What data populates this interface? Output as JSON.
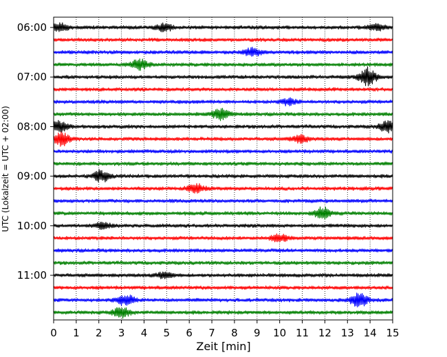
{
  "chart_data": {
    "type": "line",
    "subtype": "helicorder",
    "xlabel": "Zeit  [min]",
    "ylabel": "UTC (Lokalzeit = UTC + 02:00)",
    "xlim": [
      0,
      15
    ],
    "x_ticks": [
      "0",
      "1",
      "2",
      "3",
      "4",
      "5",
      "6",
      "7",
      "8",
      "9",
      "10",
      "11",
      "12",
      "13",
      "14",
      "15"
    ],
    "y_ticks": [
      "06:00",
      "07:00",
      "08:00",
      "09:00",
      "10:00",
      "11:00"
    ],
    "grid": "vertical dotted at each minute",
    "trace_interval_min": 15,
    "start_time": "06:00",
    "colors": [
      "#000000",
      "#ff0000",
      "#0000ff",
      "#008000"
    ],
    "traces": [
      {
        "start": "06:00",
        "color": "#000000",
        "events": [
          {
            "t": 0.3,
            "amp": 5
          },
          {
            "t": 4.9,
            "amp": 5
          },
          {
            "t": 14.3,
            "amp": 4
          }
        ]
      },
      {
        "start": "06:15",
        "color": "#ff0000",
        "events": []
      },
      {
        "start": "06:30",
        "color": "#0000ff",
        "events": [
          {
            "t": 8.8,
            "amp": 5
          }
        ]
      },
      {
        "start": "06:45",
        "color": "#008000",
        "events": [
          {
            "t": 3.8,
            "amp": 7
          }
        ]
      },
      {
        "start": "07:00",
        "color": "#000000",
        "events": [
          {
            "t": 13.9,
            "amp": 13
          }
        ]
      },
      {
        "start": "07:15",
        "color": "#ff0000",
        "events": []
      },
      {
        "start": "07:30",
        "color": "#0000ff",
        "events": [
          {
            "t": 10.4,
            "amp": 4
          }
        ]
      },
      {
        "start": "07:45",
        "color": "#008000",
        "events": [
          {
            "t": 7.4,
            "amp": 8
          }
        ]
      },
      {
        "start": "08:00",
        "color": "#000000",
        "events": [
          {
            "t": 0.25,
            "amp": 7
          },
          {
            "t": 14.8,
            "amp": 8
          }
        ]
      },
      {
        "start": "08:15",
        "color": "#ff0000",
        "events": [
          {
            "t": 0.35,
            "amp": 9
          },
          {
            "t": 10.9,
            "amp": 5
          }
        ]
      },
      {
        "start": "08:30",
        "color": "#0000ff",
        "events": []
      },
      {
        "start": "08:45",
        "color": "#008000",
        "events": []
      },
      {
        "start": "09:00",
        "color": "#000000",
        "events": [
          {
            "t": 2.1,
            "amp": 8
          }
        ]
      },
      {
        "start": "09:15",
        "color": "#ff0000",
        "events": [
          {
            "t": 6.3,
            "amp": 6
          }
        ]
      },
      {
        "start": "09:30",
        "color": "#0000ff",
        "events": []
      },
      {
        "start": "09:45",
        "color": "#008000",
        "events": [
          {
            "t": 11.9,
            "amp": 8
          }
        ]
      },
      {
        "start": "10:00",
        "color": "#000000",
        "events": [
          {
            "t": 2.2,
            "amp": 4
          }
        ]
      },
      {
        "start": "10:15",
        "color": "#ff0000",
        "events": [
          {
            "t": 10.0,
            "amp": 5
          }
        ]
      },
      {
        "start": "10:30",
        "color": "#0000ff",
        "events": []
      },
      {
        "start": "10:45",
        "color": "#008000",
        "events": []
      },
      {
        "start": "11:00",
        "color": "#000000",
        "events": [
          {
            "t": 4.9,
            "amp": 4
          }
        ]
      },
      {
        "start": "11:15",
        "color": "#ff0000",
        "events": []
      },
      {
        "start": "11:30",
        "color": "#0000ff",
        "events": [
          {
            "t": 3.2,
            "amp": 7
          },
          {
            "t": 13.5,
            "amp": 10
          }
        ]
      },
      {
        "start": "11:45",
        "color": "#008000",
        "events": [
          {
            "t": 3.0,
            "amp": 7
          }
        ]
      }
    ]
  }
}
